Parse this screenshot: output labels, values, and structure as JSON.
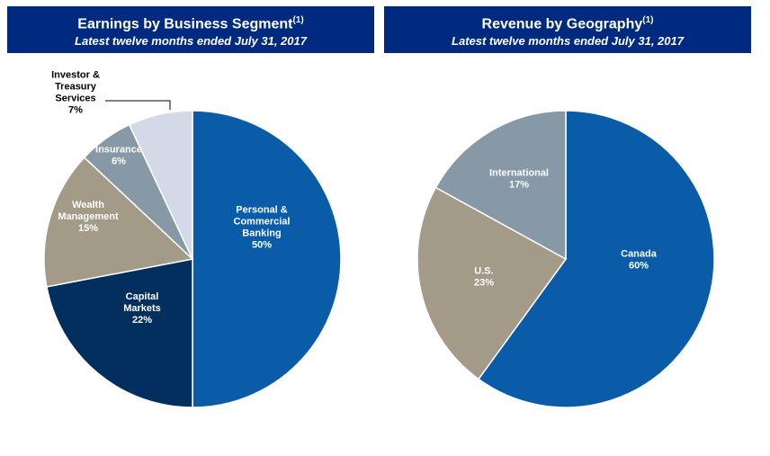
{
  "chart_data": [
    {
      "type": "pie",
      "title": "Earnings by Business Segment",
      "title_superscript": "(1)",
      "subtitle": "Latest twelve months ended July 31, 2017",
      "slices": [
        {
          "label": [
            "Personal &",
            "Commercial",
            "Banking"
          ],
          "pct_label": "50%",
          "value": 50,
          "color": "#0a5ca8"
        },
        {
          "label": [
            "Capital",
            "Markets"
          ],
          "pct_label": "22%",
          "value": 22,
          "color": "#022f5d"
        },
        {
          "label": [
            "Wealth",
            "Management"
          ],
          "pct_label": "15%",
          "value": 15,
          "color": "#a39a87"
        },
        {
          "label": [
            "Insurance"
          ],
          "pct_label": "6%",
          "value": 6,
          "color": "#8798a6"
        },
        {
          "label": [
            "Investor &",
            "Treasury",
            "Services"
          ],
          "pct_label": "7%",
          "value": 7,
          "color": "#d3d9e6"
        }
      ]
    },
    {
      "type": "pie",
      "title": "Revenue by Geography",
      "title_superscript": "(1)",
      "subtitle": "Latest twelve months ended July 31, 2017",
      "slices": [
        {
          "label": [
            "Canada"
          ],
          "pct_label": "60%",
          "value": 60,
          "color": "#0a5ca8"
        },
        {
          "label": [
            "U.S."
          ],
          "pct_label": "23%",
          "value": 23,
          "color": "#a39a87"
        },
        {
          "label": [
            "International"
          ],
          "pct_label": "17%",
          "value": 17,
          "color": "#8798a6"
        }
      ]
    }
  ]
}
